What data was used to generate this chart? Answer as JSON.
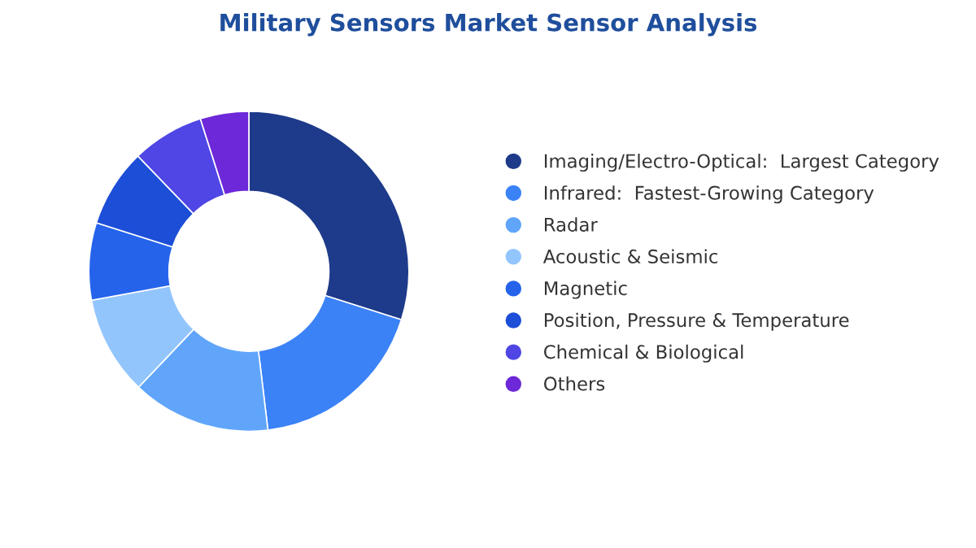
{
  "chart_data": {
    "type": "donut",
    "title": "Military Sensors Market Sensor Analysis",
    "categories": [
      "Imaging/Electro-Optical:  Largest Category",
      "Infrared:  Fastest-Growing Category",
      "Radar",
      "Acoustic & Seismic",
      "Magnetic",
      "Position, Pressure & Temperature",
      "Chemical & Biological",
      "Others"
    ],
    "values": [
      29.9,
      18.2,
      14.0,
      10.0,
      7.8,
      7.9,
      7.3,
      4.9
    ],
    "colors": [
      "#1e3a8a",
      "#3b82f6",
      "#60a5fa",
      "#93c5fd",
      "#2563eb",
      "#1d4ed8",
      "#4f46e5",
      "#6d28d9"
    ],
    "legend": "right"
  }
}
